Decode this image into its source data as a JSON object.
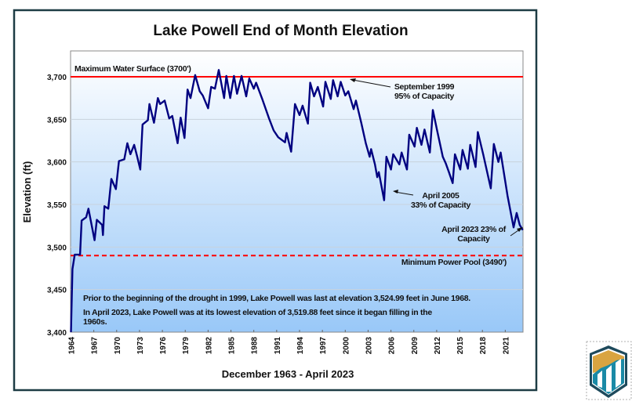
{
  "chart_data": {
    "type": "line",
    "title": "Lake Powell End of Month Elevation",
    "xlabel": "December 1963 - April 2023",
    "ylabel": "Elevation (ft)",
    "xlim": [
      1963.95,
      2023.33
    ],
    "ylim": [
      3400,
      3730
    ],
    "y_ticks": [
      "3,400",
      "3,450",
      "3,500",
      "3,550",
      "3,600",
      "3,650",
      "3,700"
    ],
    "y_tick_values": [
      3400,
      3450,
      3500,
      3550,
      3600,
      3650,
      3700
    ],
    "x_ticks": [
      "1964",
      "1967",
      "1970",
      "1973",
      "1976",
      "1979",
      "1982",
      "1985",
      "1988",
      "1991",
      "1994",
      "1997",
      "2000",
      "2003",
      "2006",
      "2009",
      "2012",
      "2015",
      "2018",
      "2021"
    ],
    "grid": true,
    "series_color": "#000080",
    "reference_lines": [
      {
        "label": "Maximum Water Surface (3700')",
        "value": 3700,
        "style": "solid",
        "color": "#ff0000"
      },
      {
        "label": "Minimum Power Pool (3490')",
        "value": 3490,
        "style": "dashed",
        "color": "#ff0000"
      }
    ],
    "annotations": [
      {
        "lines": [
          "September 1999",
          "95% of Capacity"
        ],
        "x": 1999.7,
        "y": 3694
      },
      {
        "lines": [
          "April  2005",
          "33% of Capacity"
        ],
        "x": 2005.3,
        "y": 3556
      },
      {
        "lines": [
          "April 2023 23% of",
          "Capacity"
        ],
        "x": 2023.3,
        "y": 3520
      }
    ],
    "notes": [
      "Prior to the beginning of the drought in 1999, Lake Powell was last at elevation 3,524.99 feet in June 1968.",
      "In April 2023, Lake Powell was at its lowest elevation of 3,519.88 feet since it began filling in the",
      "1960s."
    ],
    "series": [
      {
        "x": [
          1964.0,
          1964.2,
          1964.5,
          1965.2,
          1965.4,
          1966.0,
          1966.3,
          1967.1,
          1967.4,
          1968.1,
          1968.2,
          1968.4,
          1968.9,
          1969.3,
          1969.9,
          1970.3,
          1971.0,
          1971.4,
          1971.8,
          1972.3,
          1972.7,
          1973.1,
          1973.4,
          1974.1,
          1974.3,
          1974.9,
          1975.4,
          1975.7,
          1976.3,
          1976.9,
          1977.3,
          1978.0,
          1978.4,
          1978.9,
          1979.3,
          1979.7,
          1980.3,
          1980.9,
          1981.3,
          1982.0,
          1982.4,
          1982.9,
          1983.4,
          1984.1,
          1984.4,
          1984.9,
          1985.4,
          1985.8,
          1986.4,
          1987.0,
          1987.4,
          1988.0,
          1988.3,
          1989.1,
          1990.0,
          1990.6,
          1991.2,
          1992.1,
          1992.3,
          1992.9,
          1993.4,
          1994.0,
          1994.4,
          1995.1,
          1995.4,
          1995.9,
          1996.4,
          1997.1,
          1997.4,
          1998.1,
          1998.4,
          1999.0,
          1999.4,
          2000.0,
          2000.4,
          2001.1,
          2001.4,
          2002.1,
          2002.7,
          2003.2,
          2003.4,
          2003.9,
          2004.2,
          2004.4,
          2005.1,
          2005.4,
          2006.0,
          2006.3,
          2007.1,
          2007.4,
          2008.1,
          2008.4,
          2009.1,
          2009.4,
          2010.0,
          2010.4,
          2011.1,
          2011.5,
          2012.1,
          2012.8,
          2013.2,
          2013.6,
          2014.1,
          2014.4,
          2015.1,
          2015.4,
          2016.1,
          2016.4,
          2017.1,
          2017.4,
          2018.1,
          2019.1,
          2019.5,
          2020.1,
          2020.4,
          2021.3,
          2022.1,
          2022.5,
          2022.9,
          2023.3
        ],
        "y": [
          3400,
          3474,
          3491,
          3491,
          3531,
          3535,
          3545,
          3508,
          3532,
          3526,
          3514,
          3548,
          3545,
          3580,
          3568,
          3601,
          3603,
          3622,
          3609,
          3620,
          3606,
          3591,
          3644,
          3649,
          3668,
          3646,
          3675,
          3668,
          3672,
          3651,
          3654,
          3622,
          3652,
          3628,
          3685,
          3675,
          3702,
          3683,
          3678,
          3663,
          3688,
          3686,
          3708,
          3675,
          3701,
          3675,
          3701,
          3680,
          3701,
          3677,
          3698,
          3686,
          3693,
          3674,
          3651,
          3637,
          3629,
          3623,
          3634,
          3612,
          3668,
          3655,
          3666,
          3645,
          3693,
          3677,
          3688,
          3665,
          3694,
          3674,
          3696,
          3677,
          3694,
          3678,
          3683,
          3662,
          3672,
          3646,
          3622,
          3606,
          3615,
          3597,
          3582,
          3588,
          3555,
          3606,
          3591,
          3609,
          3597,
          3611,
          3591,
          3632,
          3618,
          3640,
          3620,
          3638,
          3611,
          3661,
          3635,
          3606,
          3598,
          3588,
          3575,
          3609,
          3591,
          3614,
          3592,
          3620,
          3594,
          3635,
          3609,
          3569,
          3621,
          3600,
          3611,
          3560,
          3523,
          3540,
          3526,
          3520
        ]
      }
    ]
  },
  "logo": {
    "name": "bureau-of-reclamation-shield",
    "colors": [
      "#1e4a5c",
      "#d9a441",
      "#1a8aa6",
      "#ffffff"
    ]
  }
}
